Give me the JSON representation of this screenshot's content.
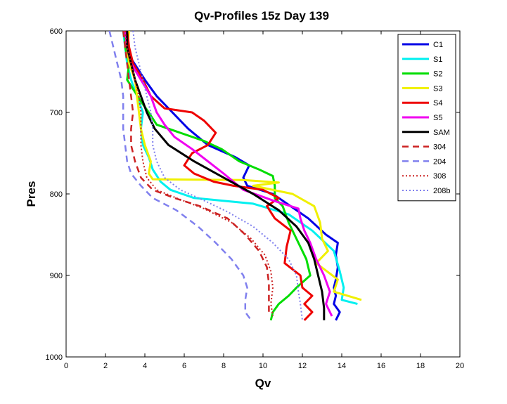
{
  "chart_data": {
    "type": "line",
    "title": "Qv-Profiles 15z Day 139",
    "xlabel": "Qv",
    "ylabel": "Pres",
    "xlim": [
      0,
      20
    ],
    "ylim": [
      600,
      1000
    ],
    "y_reversed": true,
    "grid": false,
    "legend_placement": "top-right",
    "xticks": [
      "0",
      "2",
      "4",
      "6",
      "8",
      "10",
      "12",
      "14",
      "16",
      "18",
      "20"
    ],
    "yticks": [
      "600",
      "700",
      "800",
      "900",
      "1000"
    ],
    "series": [
      {
        "name": "C1",
        "color": "#0000e6",
        "style": "solid",
        "width": 3,
        "points": [
          [
            2.9,
            600
          ],
          [
            3.1,
            615
          ],
          [
            3.2,
            630
          ],
          [
            3.6,
            645
          ],
          [
            4.0,
            660
          ],
          [
            4.6,
            680
          ],
          [
            5.4,
            700
          ],
          [
            6.2,
            720
          ],
          [
            7.2,
            740
          ],
          [
            8.6,
            755
          ],
          [
            9.3,
            765
          ],
          [
            9.0,
            780
          ],
          [
            9.2,
            790
          ],
          [
            10.5,
            800
          ],
          [
            11.4,
            815
          ],
          [
            12.3,
            830
          ],
          [
            13.2,
            850
          ],
          [
            13.8,
            860
          ],
          [
            13.7,
            875
          ],
          [
            13.8,
            890
          ],
          [
            13.7,
            905
          ],
          [
            13.6,
            915
          ],
          [
            13.7,
            925
          ],
          [
            13.6,
            935
          ],
          [
            13.9,
            945
          ],
          [
            13.7,
            955
          ]
        ]
      },
      {
        "name": "S1",
        "color": "#00f0f0",
        "style": "solid",
        "width": 3,
        "points": [
          [
            2.9,
            600
          ],
          [
            3.0,
            620
          ],
          [
            3.1,
            640
          ],
          [
            3.3,
            660
          ],
          [
            3.6,
            680
          ],
          [
            3.9,
            700
          ],
          [
            3.8,
            720
          ],
          [
            3.9,
            740
          ],
          [
            4.2,
            755
          ],
          [
            4.4,
            770
          ],
          [
            4.8,
            785
          ],
          [
            5.3,
            795
          ],
          [
            6.5,
            805
          ],
          [
            9.5,
            812
          ],
          [
            11.3,
            825
          ],
          [
            12.5,
            845
          ],
          [
            13.6,
            870
          ],
          [
            13.9,
            895
          ],
          [
            14.1,
            915
          ],
          [
            14.0,
            930
          ],
          [
            14.8,
            935
          ]
        ]
      },
      {
        "name": "S2",
        "color": "#00dd00",
        "style": "solid",
        "width": 3,
        "points": [
          [
            3.0,
            600
          ],
          [
            3.0,
            620
          ],
          [
            3.2,
            640
          ],
          [
            3.1,
            660
          ],
          [
            3.5,
            675
          ],
          [
            3.9,
            690
          ],
          [
            4.2,
            700
          ],
          [
            4.6,
            715
          ],
          [
            5.8,
            725
          ],
          [
            7.0,
            735
          ],
          [
            7.9,
            745
          ],
          [
            8.8,
            760
          ],
          [
            9.8,
            770
          ],
          [
            10.5,
            778
          ],
          [
            10.6,
            790
          ],
          [
            10.6,
            805
          ],
          [
            11.0,
            815
          ],
          [
            11.3,
            835
          ],
          [
            11.8,
            860
          ],
          [
            12.2,
            880
          ],
          [
            12.4,
            900
          ],
          [
            11.7,
            915
          ],
          [
            11.3,
            925
          ],
          [
            10.8,
            935
          ],
          [
            10.5,
            945
          ],
          [
            10.4,
            955
          ]
        ]
      },
      {
        "name": "S3",
        "color": "#f0f000",
        "style": "solid",
        "width": 3,
        "points": [
          [
            3.2,
            600
          ],
          [
            3.1,
            620
          ],
          [
            3.2,
            640
          ],
          [
            3.5,
            660
          ],
          [
            3.6,
            680
          ],
          [
            3.7,
            700
          ],
          [
            3.8,
            720
          ],
          [
            4.0,
            740
          ],
          [
            4.3,
            760
          ],
          [
            4.2,
            775
          ],
          [
            4.4,
            782
          ],
          [
            9.0,
            783
          ],
          [
            10.8,
            786
          ],
          [
            9.5,
            790
          ],
          [
            11.5,
            800
          ],
          [
            12.6,
            815
          ],
          [
            12.9,
            835
          ],
          [
            13.0,
            855
          ],
          [
            13.3,
            870
          ],
          [
            12.7,
            885
          ],
          [
            13.8,
            905
          ],
          [
            13.6,
            920
          ],
          [
            15.0,
            930
          ]
        ]
      },
      {
        "name": "S4",
        "color": "#ee0000",
        "style": "solid",
        "width": 3,
        "points": [
          [
            3.1,
            600
          ],
          [
            3.2,
            620
          ],
          [
            3.4,
            640
          ],
          [
            3.9,
            660
          ],
          [
            4.3,
            680
          ],
          [
            5.0,
            695
          ],
          [
            6.4,
            700
          ],
          [
            7.0,
            710
          ],
          [
            7.6,
            725
          ],
          [
            7.2,
            740
          ],
          [
            6.4,
            750
          ],
          [
            6.0,
            765
          ],
          [
            6.5,
            775
          ],
          [
            7.5,
            785
          ],
          [
            8.5,
            790
          ],
          [
            10.0,
            795
          ],
          [
            10.8,
            805
          ],
          [
            10.2,
            815
          ],
          [
            10.6,
            830
          ],
          [
            11.4,
            845
          ],
          [
            11.2,
            865
          ],
          [
            11.1,
            885
          ],
          [
            11.9,
            900
          ],
          [
            12.0,
            915
          ],
          [
            12.5,
            925
          ],
          [
            12.1,
            935
          ],
          [
            12.5,
            945
          ],
          [
            12.1,
            955
          ]
        ]
      },
      {
        "name": "S5",
        "color": "#f000f0",
        "style": "solid",
        "width": 3,
        "points": [
          [
            3.0,
            600
          ],
          [
            3.1,
            620
          ],
          [
            3.3,
            640
          ],
          [
            3.8,
            660
          ],
          [
            4.3,
            680
          ],
          [
            4.6,
            700
          ],
          [
            5.0,
            715
          ],
          [
            5.5,
            730
          ],
          [
            6.4,
            745
          ],
          [
            7.2,
            760
          ],
          [
            8.0,
            775
          ],
          [
            9.0,
            795
          ],
          [
            10.5,
            808
          ],
          [
            11.8,
            818
          ],
          [
            11.9,
            830
          ],
          [
            12.1,
            845
          ],
          [
            12.4,
            860
          ],
          [
            12.7,
            880
          ],
          [
            13.1,
            900
          ],
          [
            13.4,
            920
          ],
          [
            13.2,
            935
          ],
          [
            13.5,
            950
          ]
        ]
      },
      {
        "name": "SAM",
        "color": "#000000",
        "style": "solid",
        "width": 3,
        "points": [
          [
            3.1,
            600
          ],
          [
            3.1,
            620
          ],
          [
            3.3,
            640
          ],
          [
            3.5,
            660
          ],
          [
            3.8,
            680
          ],
          [
            4.1,
            700
          ],
          [
            4.5,
            720
          ],
          [
            5.2,
            740
          ],
          [
            6.5,
            760
          ],
          [
            8.0,
            780
          ],
          [
            9.5,
            800
          ],
          [
            10.8,
            820
          ],
          [
            11.7,
            840
          ],
          [
            12.3,
            860
          ],
          [
            12.6,
            880
          ],
          [
            12.8,
            900
          ],
          [
            13.0,
            920
          ],
          [
            13.1,
            940
          ],
          [
            13.1,
            955
          ]
        ]
      },
      {
        "name": "304",
        "color": "#cc2222",
        "style": "dashed",
        "width": 2.5,
        "points": [
          [
            2.9,
            600
          ],
          [
            3.0,
            620
          ],
          [
            3.1,
            640
          ],
          [
            3.2,
            660
          ],
          [
            3.3,
            680
          ],
          [
            3.4,
            700
          ],
          [
            3.3,
            720
          ],
          [
            3.3,
            740
          ],
          [
            3.5,
            760
          ],
          [
            3.8,
            780
          ],
          [
            4.4,
            795
          ],
          [
            5.5,
            805
          ],
          [
            6.8,
            815
          ],
          [
            8.2,
            830
          ],
          [
            9.1,
            850
          ],
          [
            9.8,
            870
          ],
          [
            10.2,
            890
          ],
          [
            10.3,
            910
          ],
          [
            10.3,
            930
          ],
          [
            10.3,
            945
          ]
        ]
      },
      {
        "name": "204",
        "color": "#8080ee",
        "style": "dashed",
        "width": 2.5,
        "points": [
          [
            2.2,
            600
          ],
          [
            2.4,
            620
          ],
          [
            2.6,
            640
          ],
          [
            2.8,
            660
          ],
          [
            2.9,
            680
          ],
          [
            2.9,
            700
          ],
          [
            2.9,
            720
          ],
          [
            3.0,
            740
          ],
          [
            3.1,
            760
          ],
          [
            3.3,
            775
          ],
          [
            3.8,
            790
          ],
          [
            4.4,
            805
          ],
          [
            5.6,
            820
          ],
          [
            6.7,
            840
          ],
          [
            7.6,
            860
          ],
          [
            8.4,
            880
          ],
          [
            9.0,
            900
          ],
          [
            9.2,
            915
          ],
          [
            9.1,
            930
          ],
          [
            9.1,
            945
          ],
          [
            9.4,
            955
          ]
        ]
      },
      {
        "name": "308",
        "color": "#cc2222",
        "style": "dotted",
        "width": 2,
        "points": [
          [
            3.0,
            600
          ],
          [
            3.1,
            620
          ],
          [
            3.3,
            640
          ],
          [
            3.5,
            660
          ],
          [
            3.7,
            680
          ],
          [
            3.8,
            700
          ],
          [
            3.8,
            720
          ],
          [
            3.8,
            740
          ],
          [
            3.9,
            760
          ],
          [
            4.1,
            780
          ],
          [
            4.6,
            795
          ],
          [
            5.6,
            805
          ],
          [
            7.0,
            818
          ],
          [
            8.4,
            835
          ],
          [
            9.4,
            855
          ],
          [
            10.1,
            875
          ],
          [
            10.4,
            895
          ],
          [
            10.5,
            915
          ],
          [
            10.4,
            935
          ],
          [
            10.5,
            950
          ]
        ]
      },
      {
        "name": "208b",
        "color": "#8080ee",
        "style": "dotted",
        "width": 2,
        "points": [
          [
            3.4,
            600
          ],
          [
            3.5,
            620
          ],
          [
            3.7,
            640
          ],
          [
            3.9,
            660
          ],
          [
            4.1,
            680
          ],
          [
            4.3,
            700
          ],
          [
            4.4,
            720
          ],
          [
            4.4,
            740
          ],
          [
            4.6,
            760
          ],
          [
            5.0,
            780
          ],
          [
            5.8,
            795
          ],
          [
            7.0,
            808
          ],
          [
            8.2,
            822
          ],
          [
            9.5,
            840
          ],
          [
            10.5,
            860
          ],
          [
            11.3,
            880
          ],
          [
            11.7,
            900
          ],
          [
            11.8,
            920
          ],
          [
            11.9,
            935
          ],
          [
            12.0,
            955
          ]
        ]
      }
    ]
  }
}
